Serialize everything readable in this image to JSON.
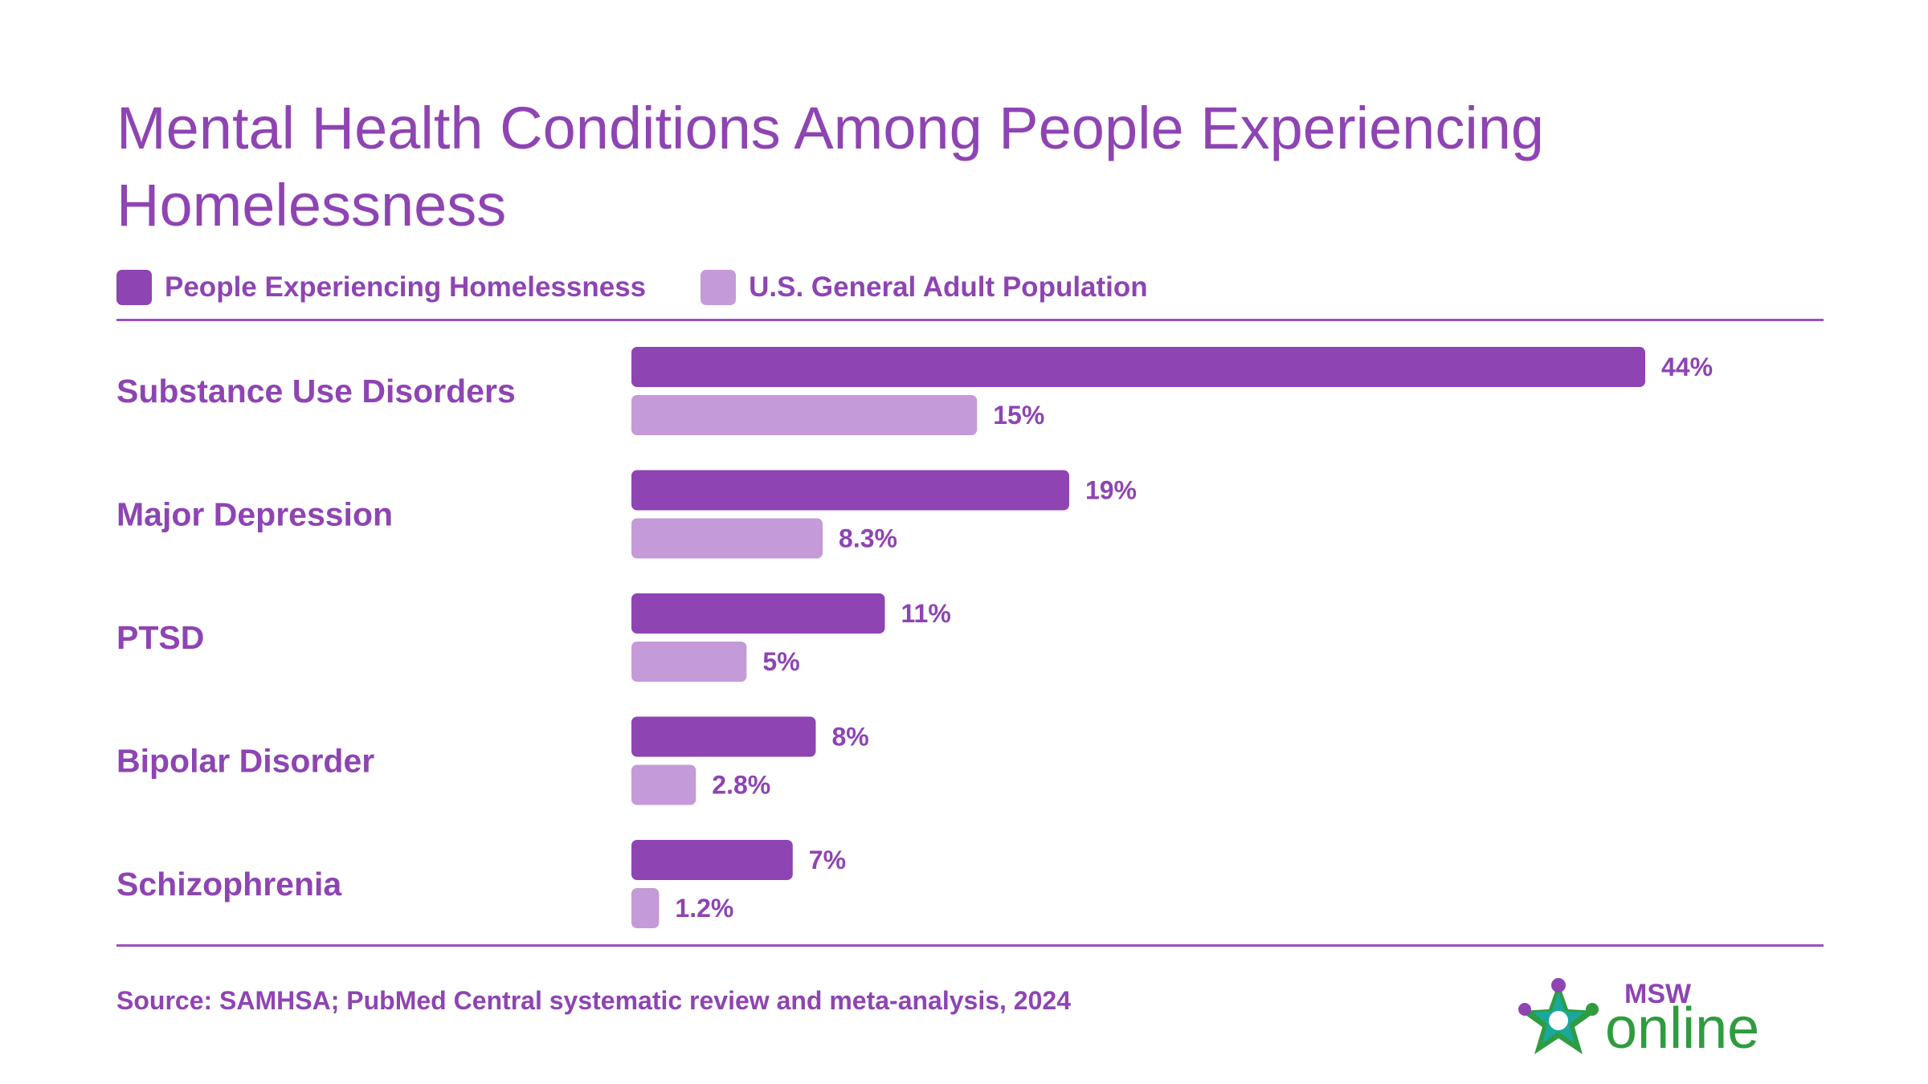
{
  "title": "Mental Health Conditions Among People Experiencing Homelessness",
  "legend": [
    {
      "label": "People Experiencing Homelessness",
      "color": "#8e44b3"
    },
    {
      "label": "U.S. General Adult Population",
      "color": "#c49ad8"
    }
  ],
  "source": "Source: SAMHSA; PubMed Central systematic review and meta-analysis, 2024",
  "logo": {
    "top_text": "MSW",
    "main_text": "online",
    "colors": [
      "#2e9c3f",
      "#8e44b3",
      "#1aa89a"
    ]
  },
  "colors": {
    "text": "#8e44b3",
    "rule": "#9b4fc0",
    "series1": "#8e44b3",
    "series2": "#c49ad8"
  },
  "chart_data": {
    "type": "bar",
    "orientation": "horizontal",
    "title": "Mental Health Conditions Among People Experiencing Homelessness",
    "categories": [
      "Substance Use Disorders",
      "Major Depression",
      "PTSD",
      "Bipolar Disorder",
      "Schizophrenia"
    ],
    "series": [
      {
        "name": "People Experiencing Homelessness",
        "color": "#8e44b3",
        "values": [
          44,
          19,
          11,
          8,
          7
        ],
        "labels": [
          "44%",
          "19%",
          "11%",
          "8%",
          "7%"
        ]
      },
      {
        "name": "U.S. General Adult Population",
        "color": "#c49ad8",
        "values": [
          15,
          8.3,
          5,
          2.8,
          1.2
        ],
        "labels": [
          "15%",
          "8.3%",
          "5%",
          "2.8%",
          "1.2%"
        ]
      }
    ],
    "unit": "%",
    "xlim": [
      0,
      44
    ],
    "grid": false,
    "legend_position": "top-left"
  }
}
